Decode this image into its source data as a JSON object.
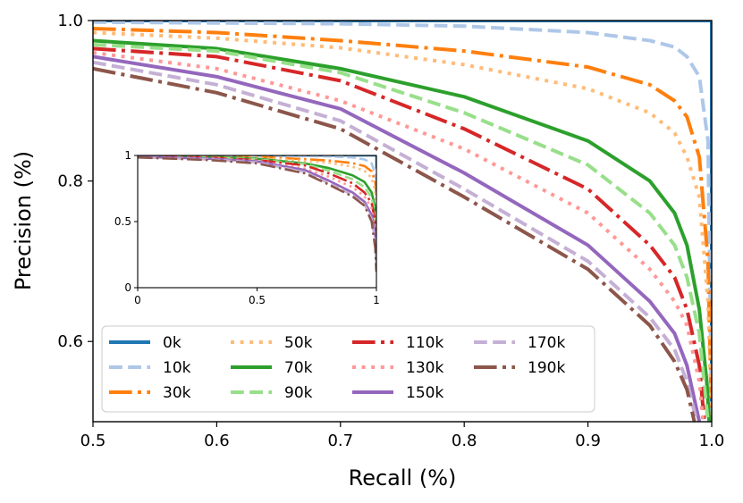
{
  "chart_data": {
    "type": "line",
    "title": "",
    "xlabel": "Recall (%)",
    "ylabel": "Precision (%)",
    "xlim": [
      0.5,
      1.0
    ],
    "ylim": [
      0.5,
      1.0
    ],
    "x_ticks": [
      "0.5",
      "0.6",
      "0.7",
      "0.8",
      "0.9",
      "1.0"
    ],
    "y_ticks": [
      "0.6",
      "0.8",
      "1.0"
    ],
    "legend_position": "lower-left",
    "legend_columns": 4,
    "series": [
      {
        "name": "0k",
        "color": "#1f77b4",
        "style": "solid",
        "points": [
          [
            0.5,
            1.0
          ],
          [
            0.6,
            1.0
          ],
          [
            0.7,
            1.0
          ],
          [
            0.8,
            1.0
          ],
          [
            0.9,
            1.0
          ],
          [
            0.97,
            1.0
          ],
          [
            0.99,
            1.0
          ],
          [
            0.997,
            1.0
          ],
          [
            1.0,
            1.0
          ],
          [
            1.0,
            0.5
          ]
        ]
      },
      {
        "name": "10k",
        "color": "#aec7e8",
        "style": "dashed",
        "points": [
          [
            0.5,
            0.998
          ],
          [
            0.6,
            0.997
          ],
          [
            0.7,
            0.996
          ],
          [
            0.8,
            0.993
          ],
          [
            0.9,
            0.985
          ],
          [
            0.95,
            0.975
          ],
          [
            0.97,
            0.967
          ],
          [
            0.98,
            0.955
          ],
          [
            0.99,
            0.93
          ],
          [
            0.997,
            0.85
          ],
          [
            1.0,
            0.5
          ]
        ]
      },
      {
        "name": "30k",
        "color": "#ff7f0e",
        "style": "dashdot",
        "points": [
          [
            0.5,
            0.99
          ],
          [
            0.6,
            0.985
          ],
          [
            0.7,
            0.975
          ],
          [
            0.8,
            0.962
          ],
          [
            0.9,
            0.942
          ],
          [
            0.95,
            0.92
          ],
          [
            0.97,
            0.9
          ],
          [
            0.98,
            0.88
          ],
          [
            0.99,
            0.83
          ],
          [
            0.997,
            0.7
          ],
          [
            1.0,
            0.5
          ]
        ]
      },
      {
        "name": "50k",
        "color": "#ffbb78",
        "style": "dotted",
        "points": [
          [
            0.5,
            0.985
          ],
          [
            0.6,
            0.978
          ],
          [
            0.7,
            0.966
          ],
          [
            0.8,
            0.945
          ],
          [
            0.9,
            0.915
          ],
          [
            0.95,
            0.885
          ],
          [
            0.97,
            0.86
          ],
          [
            0.98,
            0.83
          ],
          [
            0.99,
            0.78
          ],
          [
            0.997,
            0.65
          ],
          [
            1.0,
            0.5
          ]
        ]
      },
      {
        "name": "70k",
        "color": "#2ca02c",
        "style": "solid",
        "points": [
          [
            0.5,
            0.975
          ],
          [
            0.6,
            0.965
          ],
          [
            0.7,
            0.94
          ],
          [
            0.8,
            0.905
          ],
          [
            0.9,
            0.85
          ],
          [
            0.95,
            0.8
          ],
          [
            0.97,
            0.76
          ],
          [
            0.98,
            0.72
          ],
          [
            0.99,
            0.64
          ],
          [
            0.996,
            0.55
          ],
          [
            0.998,
            0.5
          ]
        ]
      },
      {
        "name": "90k",
        "color": "#98df8a",
        "style": "dashed",
        "points": [
          [
            0.5,
            0.97
          ],
          [
            0.6,
            0.962
          ],
          [
            0.7,
            0.935
          ],
          [
            0.8,
            0.885
          ],
          [
            0.9,
            0.82
          ],
          [
            0.95,
            0.76
          ],
          [
            0.97,
            0.72
          ],
          [
            0.98,
            0.68
          ],
          [
            0.99,
            0.61
          ],
          [
            0.995,
            0.53
          ],
          [
            0.997,
            0.5
          ]
        ]
      },
      {
        "name": "110k",
        "color": "#d62728",
        "style": "dashdot",
        "points": [
          [
            0.5,
            0.965
          ],
          [
            0.6,
            0.955
          ],
          [
            0.7,
            0.925
          ],
          [
            0.8,
            0.865
          ],
          [
            0.9,
            0.79
          ],
          [
            0.95,
            0.72
          ],
          [
            0.97,
            0.68
          ],
          [
            0.98,
            0.64
          ],
          [
            0.99,
            0.57
          ],
          [
            0.994,
            0.5
          ]
        ]
      },
      {
        "name": "130k",
        "color": "#ff9896",
        "style": "dotted",
        "points": [
          [
            0.5,
            0.96
          ],
          [
            0.6,
            0.94
          ],
          [
            0.7,
            0.9
          ],
          [
            0.8,
            0.84
          ],
          [
            0.9,
            0.76
          ],
          [
            0.95,
            0.69
          ],
          [
            0.97,
            0.65
          ],
          [
            0.98,
            0.62
          ],
          [
            0.99,
            0.55
          ],
          [
            0.993,
            0.5
          ]
        ]
      },
      {
        "name": "150k",
        "color": "#9467bd",
        "style": "solid",
        "points": [
          [
            0.5,
            0.955
          ],
          [
            0.6,
            0.93
          ],
          [
            0.7,
            0.89
          ],
          [
            0.8,
            0.81
          ],
          [
            0.9,
            0.72
          ],
          [
            0.95,
            0.65
          ],
          [
            0.97,
            0.61
          ],
          [
            0.98,
            0.57
          ],
          [
            0.99,
            0.5
          ]
        ]
      },
      {
        "name": "170k",
        "color": "#c5b0d5",
        "style": "dashed",
        "points": [
          [
            0.5,
            0.948
          ],
          [
            0.6,
            0.92
          ],
          [
            0.7,
            0.875
          ],
          [
            0.8,
            0.79
          ],
          [
            0.9,
            0.7
          ],
          [
            0.95,
            0.63
          ],
          [
            0.97,
            0.59
          ],
          [
            0.98,
            0.55
          ],
          [
            0.988,
            0.5
          ]
        ]
      },
      {
        "name": "190k",
        "color": "#8c564b",
        "style": "dashdot",
        "points": [
          [
            0.5,
            0.94
          ],
          [
            0.6,
            0.91
          ],
          [
            0.7,
            0.865
          ],
          [
            0.8,
            0.78
          ],
          [
            0.9,
            0.69
          ],
          [
            0.95,
            0.62
          ],
          [
            0.97,
            0.575
          ],
          [
            0.98,
            0.54
          ],
          [
            0.986,
            0.5
          ]
        ]
      }
    ],
    "inset": {
      "xlim": [
        0,
        1
      ],
      "ylim": [
        0,
        1
      ],
      "x_ticks": [
        "0",
        "0.5",
        "1"
      ],
      "y_ticks": [
        "0",
        "0.5",
        "1"
      ],
      "series": [
        {
          "name": "0k",
          "points": [
            [
              0,
              1.0
            ],
            [
              0.5,
              1.0
            ],
            [
              0.8,
              1.0
            ],
            [
              0.95,
              1.0
            ],
            [
              1.0,
              1.0
            ],
            [
              1.0,
              0.9
            ]
          ]
        },
        {
          "name": "10k",
          "points": [
            [
              0,
              1.0
            ],
            [
              0.5,
              0.998
            ],
            [
              0.8,
              0.993
            ],
            [
              0.9,
              0.985
            ],
            [
              0.95,
              0.97
            ],
            [
              0.98,
              0.94
            ],
            [
              0.995,
              0.86
            ],
            [
              1.0,
              0.8
            ]
          ]
        },
        {
          "name": "30k",
          "points": [
            [
              0,
              1.0
            ],
            [
              0.5,
              0.99
            ],
            [
              0.8,
              0.962
            ],
            [
              0.9,
              0.942
            ],
            [
              0.95,
              0.92
            ],
            [
              0.98,
              0.88
            ],
            [
              0.995,
              0.8
            ],
            [
              1.0,
              0.7
            ]
          ]
        },
        {
          "name": "50k",
          "points": [
            [
              0,
              1.0
            ],
            [
              0.5,
              0.985
            ],
            [
              0.8,
              0.945
            ],
            [
              0.9,
              0.915
            ],
            [
              0.95,
              0.885
            ],
            [
              0.98,
              0.83
            ],
            [
              0.995,
              0.73
            ],
            [
              1.0,
              0.6
            ]
          ]
        },
        {
          "name": "70k",
          "points": [
            [
              0,
              0.995
            ],
            [
              0.3,
              0.99
            ],
            [
              0.5,
              0.975
            ],
            [
              0.7,
              0.94
            ],
            [
              0.8,
              0.905
            ],
            [
              0.9,
              0.85
            ],
            [
              0.95,
              0.8
            ],
            [
              0.98,
              0.72
            ],
            [
              0.995,
              0.6
            ],
            [
              1.0,
              0.4
            ]
          ]
        },
        {
          "name": "90k",
          "points": [
            [
              0,
              0.995
            ],
            [
              0.3,
              0.988
            ],
            [
              0.5,
              0.97
            ],
            [
              0.7,
              0.935
            ],
            [
              0.8,
              0.885
            ],
            [
              0.9,
              0.82
            ],
            [
              0.95,
              0.76
            ],
            [
              0.98,
              0.68
            ],
            [
              0.995,
              0.56
            ],
            [
              1.0,
              0.35
            ]
          ]
        },
        {
          "name": "110k",
          "points": [
            [
              0,
              0.99
            ],
            [
              0.3,
              0.985
            ],
            [
              0.5,
              0.965
            ],
            [
              0.7,
              0.925
            ],
            [
              0.8,
              0.865
            ],
            [
              0.9,
              0.79
            ],
            [
              0.95,
              0.72
            ],
            [
              0.98,
              0.64
            ],
            [
              0.995,
              0.5
            ],
            [
              1.0,
              0.3
            ]
          ]
        },
        {
          "name": "130k",
          "points": [
            [
              0,
              0.99
            ],
            [
              0.3,
              0.98
            ],
            [
              0.5,
              0.96
            ],
            [
              0.7,
              0.9
            ],
            [
              0.8,
              0.84
            ],
            [
              0.9,
              0.76
            ],
            [
              0.95,
              0.69
            ],
            [
              0.98,
              0.6
            ],
            [
              0.995,
              0.45
            ],
            [
              1.0,
              0.25
            ]
          ]
        },
        {
          "name": "150k",
          "points": [
            [
              0,
              0.99
            ],
            [
              0.3,
              0.975
            ],
            [
              0.5,
              0.955
            ],
            [
              0.7,
              0.89
            ],
            [
              0.8,
              0.81
            ],
            [
              0.9,
              0.72
            ],
            [
              0.95,
              0.65
            ],
            [
              0.98,
              0.55
            ],
            [
              0.995,
              0.4
            ],
            [
              1.0,
              0.2
            ]
          ]
        },
        {
          "name": "170k",
          "points": [
            [
              0,
              0.985
            ],
            [
              0.3,
              0.97
            ],
            [
              0.5,
              0.948
            ],
            [
              0.7,
              0.875
            ],
            [
              0.8,
              0.79
            ],
            [
              0.9,
              0.7
            ],
            [
              0.95,
              0.63
            ],
            [
              0.98,
              0.52
            ],
            [
              0.995,
              0.35
            ],
            [
              1.0,
              0.15
            ]
          ]
        },
        {
          "name": "190k",
          "points": [
            [
              0,
              0.985
            ],
            [
              0.3,
              0.965
            ],
            [
              0.5,
              0.94
            ],
            [
              0.7,
              0.865
            ],
            [
              0.8,
              0.78
            ],
            [
              0.9,
              0.69
            ],
            [
              0.95,
              0.62
            ],
            [
              0.98,
              0.5
            ],
            [
              0.995,
              0.3
            ],
            [
              1.0,
              0.12
            ]
          ]
        }
      ]
    }
  }
}
